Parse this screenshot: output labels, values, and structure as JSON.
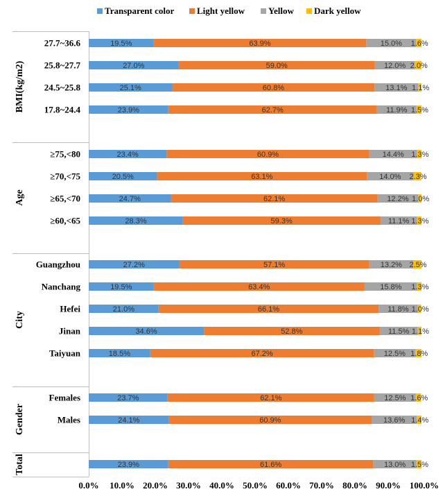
{
  "chart_data": {
    "type": "bar",
    "orientation": "horizontal",
    "stacked": "percent",
    "title": "",
    "xlabel": "",
    "ylabel": "",
    "xlim": [
      0,
      100
    ],
    "x_ticks": [
      "0.0%",
      "10.0%",
      "20.0%",
      "30.0%",
      "40.0%",
      "50.0%",
      "60.0%",
      "70.0%",
      "80.0%",
      "90.0%",
      "100.0%"
    ],
    "legend_position": "top",
    "series": [
      {
        "name": "Transparent color",
        "color": "#5B9BD5"
      },
      {
        "name": "Light yellow",
        "color": "#ED7D31"
      },
      {
        "name": "Yellow",
        "color": "#A5A5A5"
      },
      {
        "name": "Dark yellow",
        "color": "#FFC000"
      }
    ],
    "groups": [
      {
        "name": "BMI(kg/m2)",
        "categories": [
          {
            "label": "27.7~36.6",
            "values": [
              19.5,
              63.9,
              15.0,
              1.6
            ],
            "labels": [
              "19.5%",
              "63.9%",
              "15.0%",
              "1.6%"
            ]
          },
          {
            "label": "25.8~27.7",
            "values": [
              27.0,
              59.0,
              12.0,
              2.0
            ],
            "labels": [
              "27.0%",
              "59.0%",
              "12.0%",
              "2.0%"
            ]
          },
          {
            "label": "24.5~25.8",
            "values": [
              25.1,
              60.8,
              13.1,
              1.1
            ],
            "labels": [
              "25.1%",
              "60.8%",
              "13.1%",
              "1.1%"
            ]
          },
          {
            "label": "17.8~24.4",
            "values": [
              23.9,
              62.7,
              11.9,
              1.5
            ],
            "labels": [
              "23.9%",
              "62.7%",
              "11.9%",
              "1.5%"
            ]
          }
        ]
      },
      {
        "name": "Age",
        "categories": [
          {
            "label": "≥75,<80",
            "values": [
              23.4,
              60.9,
              14.4,
              1.3
            ],
            "labels": [
              "23.4%",
              "60.9%",
              "14.4%",
              "1.3%"
            ]
          },
          {
            "label": "≥70,<75",
            "values": [
              20.5,
              63.1,
              14.0,
              2.3
            ],
            "labels": [
              "20.5%",
              "63.1%",
              "14.0%",
              "2.3%"
            ]
          },
          {
            "label": "≥65,<70",
            "values": [
              24.7,
              62.1,
              12.2,
              1.0
            ],
            "labels": [
              "24.7%",
              "62.1%",
              "12.2%",
              "1.0%"
            ]
          },
          {
            "label": "≥60,<65",
            "values": [
              28.3,
              59.3,
              11.1,
              1.3
            ],
            "labels": [
              "28.3%",
              "59.3%",
              "11.1%",
              "1.3%"
            ]
          }
        ]
      },
      {
        "name": "City",
        "categories": [
          {
            "label": "Guangzhou",
            "values": [
              27.2,
              57.1,
              13.2,
              2.5
            ],
            "labels": [
              "27.2%",
              "57.1%",
              "13.2%",
              "2.5%"
            ]
          },
          {
            "label": "Nanchang",
            "values": [
              19.5,
              63.4,
              15.8,
              1.3
            ],
            "labels": [
              "19.5%",
              "63.4%",
              "15.8%",
              "1.3%"
            ]
          },
          {
            "label": "Hefei",
            "values": [
              21.0,
              66.1,
              11.8,
              1.0
            ],
            "labels": [
              "21.0%",
              "66.1%",
              "11.8%",
              "1.0%"
            ]
          },
          {
            "label": "Jinan",
            "values": [
              34.6,
              52.8,
              11.5,
              1.1
            ],
            "labels": [
              "34.6%",
              "52.8%",
              "11.5%",
              "1.1%"
            ]
          },
          {
            "label": "Taiyuan",
            "values": [
              18.5,
              67.2,
              12.5,
              1.8
            ],
            "labels": [
              "18.5%",
              "67.2%",
              "12.5%",
              "1.8%"
            ]
          }
        ]
      },
      {
        "name": "Gender",
        "categories": [
          {
            "label": "Females",
            "values": [
              23.7,
              62.1,
              12.5,
              1.6
            ],
            "labels": [
              "23.7%",
              "62.1%",
              "12.5%",
              "1.6%"
            ]
          },
          {
            "label": "Males",
            "values": [
              24.1,
              60.9,
              13.6,
              1.4
            ],
            "labels": [
              "24.1%",
              "60.9%",
              "13.6%",
              "1.4%"
            ]
          }
        ]
      },
      {
        "name": "Total",
        "categories": [
          {
            "label": "",
            "values": [
              23.9,
              61.6,
              13.0,
              1.5
            ],
            "labels": [
              "23.9%",
              "61.6%",
              "13.0%",
              "1.5%"
            ]
          }
        ]
      }
    ]
  }
}
